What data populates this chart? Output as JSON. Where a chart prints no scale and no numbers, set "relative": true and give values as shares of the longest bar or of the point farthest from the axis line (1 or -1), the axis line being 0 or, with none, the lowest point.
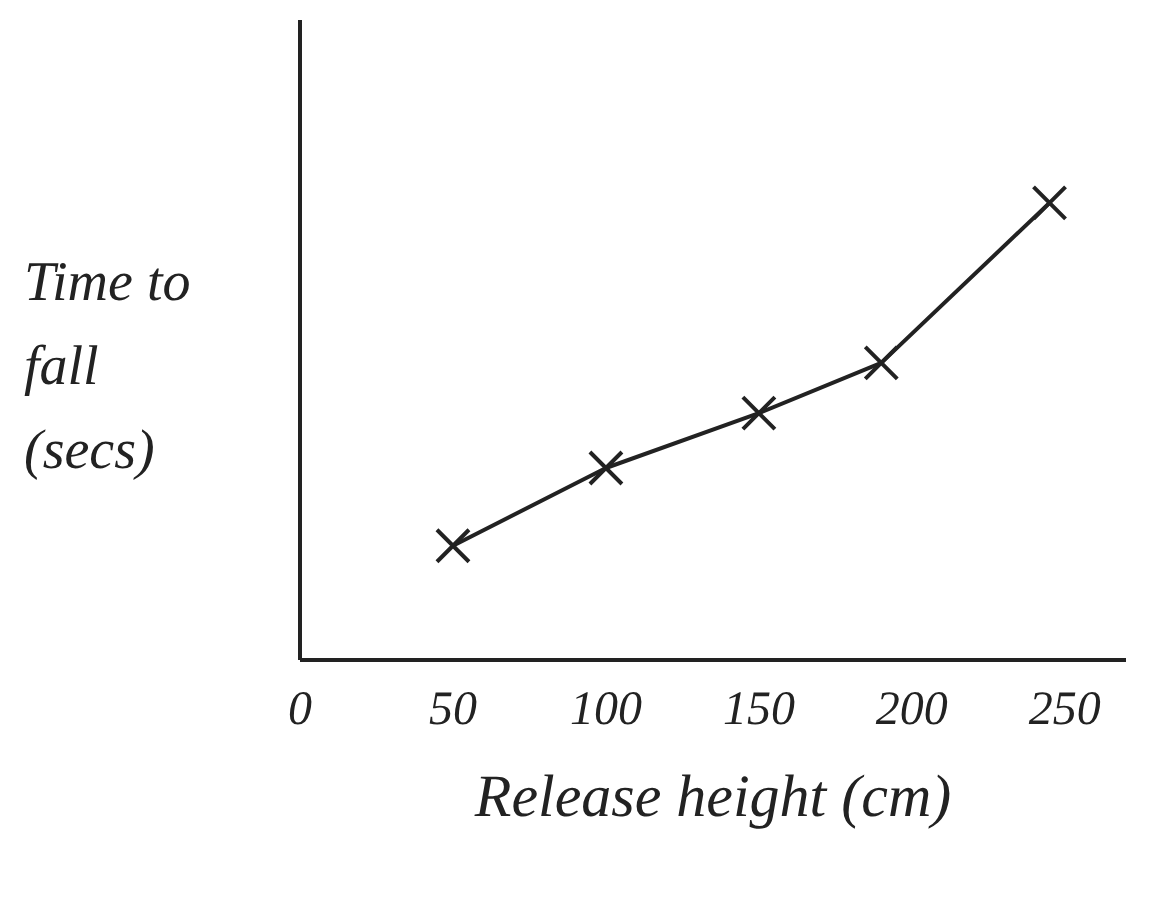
{
  "chart_data": {
    "type": "line",
    "xlabel": "Release height (cm)",
    "ylabel": "Time to fall (secs)",
    "relative": true,
    "x": [
      50,
      100,
      150,
      190,
      245
    ],
    "values": [
      0.25,
      0.42,
      0.54,
      0.65,
      1
    ],
    "color": "#222222",
    "marker": "cross",
    "line_style": "solid",
    "xlim": [
      0,
      270
    ],
    "xticks": [
      0,
      50,
      100,
      150,
      200,
      250
    ]
  }
}
